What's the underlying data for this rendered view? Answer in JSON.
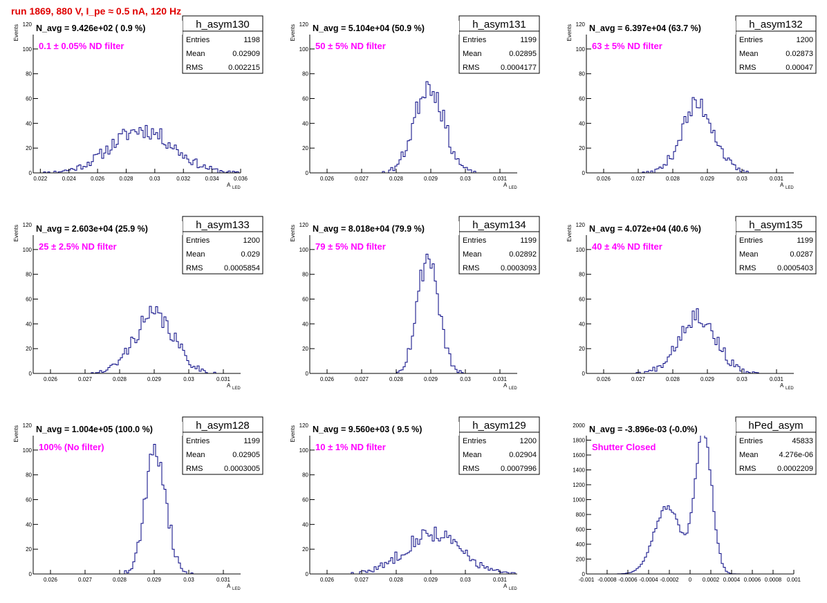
{
  "header": {
    "title": "run 1869,   880 V, I_pe ≈ 0.5 nA, 120 Hz"
  },
  "colors": {
    "title": "#e00000",
    "histogram": "#000080",
    "annotation": "#ff00ff"
  },
  "stat_labels": {
    "entries": "Entries",
    "mean": "Mean",
    "rms": "RMS"
  },
  "chart_data": [
    {
      "type": "bar",
      "name": "h_asym130",
      "navg": "N_avg = 9.426e+02 ( 0.9 %)",
      "filter": "0.1 ± 0.05% ND filter",
      "entries": "1198",
      "mean": "0.02909",
      "rms": "0.002215",
      "xlabel": "A",
      "xlabel_sub": "LED",
      "ylabel": "Events",
      "xlim": [
        0.0215,
        0.036
      ],
      "ylim": [
        0,
        120
      ],
      "xticks": [
        0.022,
        0.024,
        0.026,
        0.028,
        0.03,
        0.032,
        0.034,
        0.036
      ],
      "xtick_labels": [
        "0.022",
        "0.024",
        "0.026",
        "0.028",
        "0.03",
        "0.032",
        "0.034",
        "0.036"
      ],
      "yticks": [
        0,
        20,
        40,
        60,
        80,
        100,
        120
      ],
      "ytick_labels": [
        "0",
        "20",
        "40",
        "60",
        "80",
        "100",
        "120"
      ],
      "mu": 0.0291,
      "sigma": 0.0022,
      "peak": 35,
      "seed": 11
    },
    {
      "type": "bar",
      "name": "h_asym131",
      "navg": "N_avg = 5.104e+04 (50.9 %)",
      "filter": "50 ± 5% ND filter",
      "entries": "1199",
      "mean": "0.02895",
      "rms": "0.0004177",
      "xlabel": "A",
      "xlabel_sub": "LED",
      "ylabel": "Events",
      "xlim": [
        0.0255,
        0.0315
      ],
      "ylim": [
        0,
        120
      ],
      "xticks": [
        0.026,
        0.027,
        0.028,
        0.029,
        0.03,
        0.031
      ],
      "xtick_labels": [
        "0.026",
        "0.027",
        "0.028",
        "0.029",
        "0.03",
        "0.031"
      ],
      "yticks": [
        0,
        20,
        40,
        60,
        80,
        100,
        120
      ],
      "ytick_labels": [
        "0",
        "20",
        "40",
        "60",
        "80",
        "100",
        "120"
      ],
      "mu": 0.02895,
      "sigma": 0.00042,
      "peak": 72,
      "seed": 23
    },
    {
      "type": "bar",
      "name": "h_asym132",
      "navg": "N_avg = 6.397e+04 (63.7 %)",
      "filter": "63 ± 5% ND filter",
      "entries": "1200",
      "mean": "0.02873",
      "rms": "0.00047",
      "xlabel": "A",
      "xlabel_sub": "LED",
      "ylabel": "Events",
      "xlim": [
        0.0255,
        0.0315
      ],
      "ylim": [
        0,
        120
      ],
      "xticks": [
        0.026,
        0.027,
        0.028,
        0.029,
        0.03,
        0.031
      ],
      "xtick_labels": [
        "0.026",
        "0.027",
        "0.028",
        "0.029",
        "0.03",
        "0.031"
      ],
      "yticks": [
        0,
        20,
        40,
        60,
        80,
        100,
        120
      ],
      "ytick_labels": [
        "0",
        "20",
        "40",
        "60",
        "80",
        "100",
        "120"
      ],
      "mu": 0.02873,
      "sigma": 0.00047,
      "peak": 55,
      "seed": 37
    },
    {
      "type": "bar",
      "name": "h_asym133",
      "navg": "N_avg = 2.603e+04 (25.9 %)",
      "filter": "25 ± 2.5% ND filter",
      "entries": "1200",
      "mean": "0.029",
      "rms": "0.0005854",
      "xlabel": "A",
      "xlabel_sub": "LED",
      "ylabel": "Events",
      "xlim": [
        0.0255,
        0.0315
      ],
      "ylim": [
        0,
        120
      ],
      "xticks": [
        0.026,
        0.027,
        0.028,
        0.029,
        0.03,
        0.031
      ],
      "xtick_labels": [
        "0.026",
        "0.027",
        "0.028",
        "0.029",
        "0.03",
        "0.031"
      ],
      "yticks": [
        0,
        20,
        40,
        60,
        80,
        100,
        120
      ],
      "ytick_labels": [
        "0",
        "20",
        "40",
        "60",
        "80",
        "100",
        "120"
      ],
      "mu": 0.029,
      "sigma": 0.00058,
      "peak": 47,
      "seed": 41
    },
    {
      "type": "bar",
      "name": "h_asym134",
      "navg": "N_avg = 8.018e+04 (79.9 %)",
      "filter": "79 ± 5% ND filter",
      "entries": "1199",
      "mean": "0.02892",
      "rms": "0.0003093",
      "xlabel": "A",
      "xlabel_sub": "LED",
      "ylabel": "Events",
      "xlim": [
        0.0255,
        0.0315
      ],
      "ylim": [
        0,
        120
      ],
      "xticks": [
        0.026,
        0.027,
        0.028,
        0.029,
        0.03,
        0.031
      ],
      "xtick_labels": [
        "0.026",
        "0.027",
        "0.028",
        "0.029",
        "0.03",
        "0.031"
      ],
      "yticks": [
        0,
        20,
        40,
        60,
        80,
        100,
        120
      ],
      "ytick_labels": [
        "0",
        "20",
        "40",
        "60",
        "80",
        "100",
        "120"
      ],
      "mu": 0.02892,
      "sigma": 0.00031,
      "peak": 95,
      "seed": 53
    },
    {
      "type": "bar",
      "name": "h_asym135",
      "navg": "N_avg = 4.072e+04 (40.6 %)",
      "filter": "40 ± 4% ND filter",
      "entries": "1199",
      "mean": "0.0287",
      "rms": "0.0005403",
      "xlabel": "A",
      "xlabel_sub": "LED",
      "ylabel": "Events",
      "xlim": [
        0.0255,
        0.0315
      ],
      "ylim": [
        0,
        120
      ],
      "xticks": [
        0.026,
        0.027,
        0.028,
        0.029,
        0.03,
        0.031
      ],
      "xtick_labels": [
        "0.026",
        "0.027",
        "0.028",
        "0.029",
        "0.03",
        "0.031"
      ],
      "yticks": [
        0,
        20,
        40,
        60,
        80,
        100,
        120
      ],
      "ytick_labels": [
        "0",
        "20",
        "40",
        "60",
        "80",
        "100",
        "120"
      ],
      "mu": 0.0287,
      "sigma": 0.00054,
      "peak": 47,
      "seed": 67
    },
    {
      "type": "bar",
      "name": "h_asym128",
      "navg": "N_avg = 1.004e+05 (100.0 %)",
      "filter": "100% (No filter)",
      "entries": "1199",
      "mean": "0.02905",
      "rms": "0.0003005",
      "xlabel": "A",
      "xlabel_sub": "LED",
      "ylabel": "Events",
      "xlim": [
        0.0255,
        0.0315
      ],
      "ylim": [
        0,
        120
      ],
      "xticks": [
        0.026,
        0.027,
        0.028,
        0.029,
        0.03,
        0.031
      ],
      "xtick_labels": [
        "0.026",
        "0.027",
        "0.028",
        "0.029",
        "0.03",
        "0.031"
      ],
      "yticks": [
        0,
        20,
        40,
        60,
        80,
        100,
        120
      ],
      "ytick_labels": [
        "0",
        "20",
        "40",
        "60",
        "80",
        "100",
        "120"
      ],
      "mu": 0.02905,
      "sigma": 0.0003,
      "peak": 100,
      "seed": 71
    },
    {
      "type": "bar",
      "name": "h_asym129",
      "navg": "N_avg = 9.560e+03 ( 9.5 %)",
      "filter": "10 ± 1% ND filter",
      "entries": "1200",
      "mean": "0.02904",
      "rms": "0.0007996",
      "xlabel": "A",
      "xlabel_sub": "LED",
      "ylabel": "Events",
      "xlim": [
        0.0255,
        0.0315
      ],
      "ylim": [
        0,
        120
      ],
      "xticks": [
        0.026,
        0.027,
        0.028,
        0.029,
        0.03,
        0.031
      ],
      "xtick_labels": [
        "0.026",
        "0.027",
        "0.028",
        "0.029",
        "0.03",
        "0.031"
      ],
      "yticks": [
        0,
        20,
        40,
        60,
        80,
        100,
        120
      ],
      "ytick_labels": [
        "0",
        "20",
        "40",
        "60",
        "80",
        "100",
        "120"
      ],
      "mu": 0.02904,
      "sigma": 0.0008,
      "peak": 33,
      "seed": 83
    },
    {
      "type": "bar",
      "name": "hPed_asym",
      "navg": "N_avg = -3.896e-03 (-0.0%)",
      "filter": "Shutter Closed",
      "entries": "45833",
      "mean": "4.276e-06",
      "rms": "0.0002209",
      "xlabel": "",
      "xlabel_sub": "",
      "ylabel": "",
      "xlim": [
        -0.001,
        0.001
      ],
      "ylim": [
        0,
        2000
      ],
      "xticks": [
        -0.001,
        -0.0008,
        -0.0006,
        -0.0004,
        -0.0002,
        0,
        0.0002,
        0.0004,
        0.0006,
        0.0008,
        0.001
      ],
      "xtick_labels": [
        "-0.001",
        "-0.0008",
        "-0.0006",
        "-0.0004",
        "-0.0002",
        "0",
        "0.0002",
        "0.0004",
        "0.0006",
        "0.0008",
        "0.001"
      ],
      "yticks": [
        0,
        200,
        400,
        600,
        800,
        1000,
        1200,
        1400,
        1600,
        1800,
        2000
      ],
      "ytick_labels": [
        "0",
        "200",
        "400",
        "600",
        "800",
        "1000",
        "1200",
        "1400",
        "1600",
        "1800",
        "2000"
      ],
      "mu": 0.00013,
      "sigma": 8e-05,
      "peak": 1900,
      "mu2": -0.00022,
      "sigma2": 0.00013,
      "peak2": 900,
      "seed": 97
    }
  ]
}
